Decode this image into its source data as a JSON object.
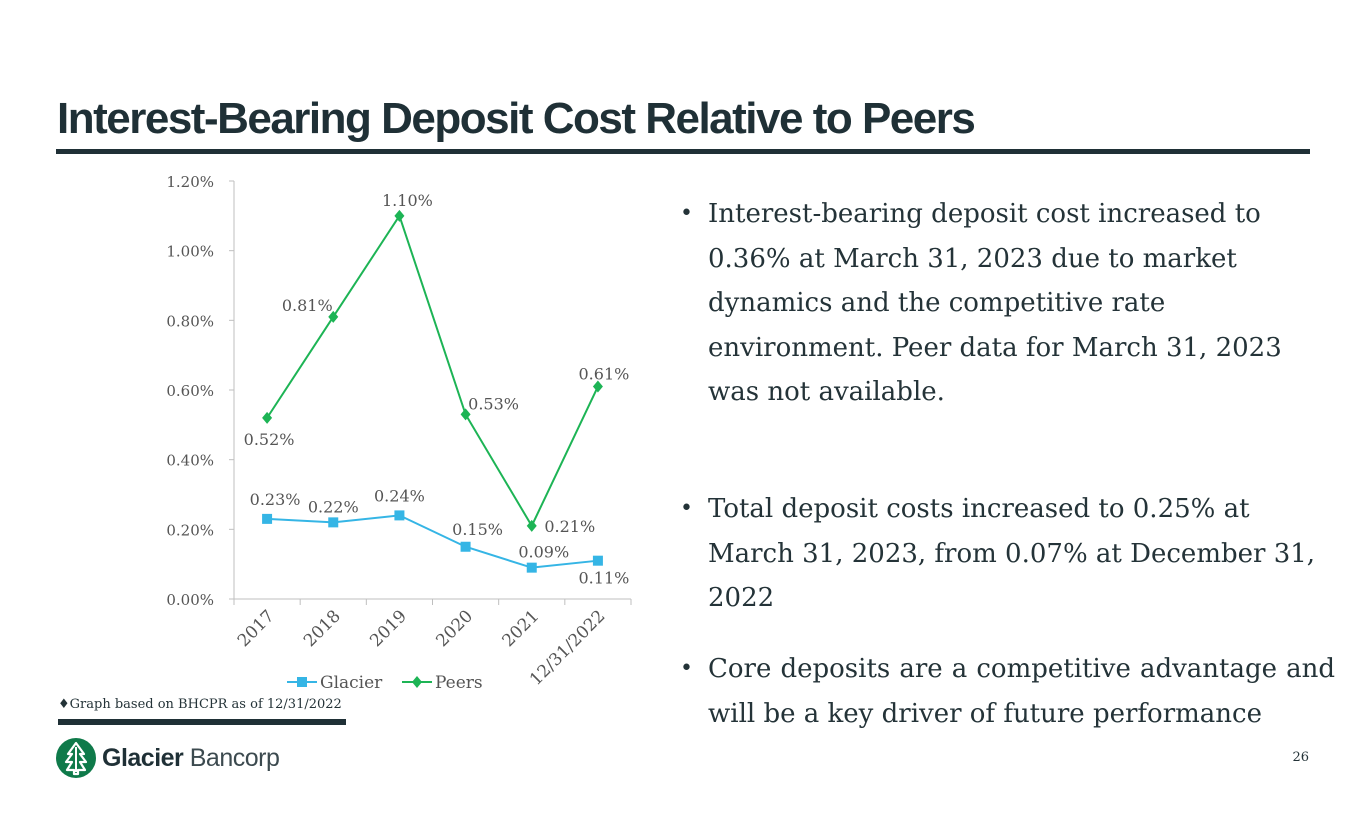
{
  "slide": {
    "title": "Interest-Bearing Deposit Cost Relative to Peers",
    "page_number": "26",
    "footnote": "♦Graph based on BHCPR as of 12/31/2022",
    "bullets": [
      "Interest-bearing deposit cost increased to 0.36% at March 31, 2023 due to market dynamics and the competitive rate environment.  Peer data for March 31, 2023 was not available.",
      "Total deposit costs increased to 0.25% at March 31, 2023, from 0.07% at December 31, 2022",
      "Core deposits are a competitive advantage and will be a key driver of future performance"
    ],
    "logo": {
      "brand": "Glacier",
      "suffix": "Bancorp"
    }
  },
  "colors": {
    "title": "#1f3036",
    "glacier": "#35b5e5",
    "peers": "#1db455",
    "axis": "#bfbfbf",
    "label": "#555555"
  },
  "chart_data": {
    "type": "line",
    "categories": [
      "2017",
      "2018",
      "2019",
      "2020",
      "2021",
      "12/31/2022"
    ],
    "series": [
      {
        "name": "Glacier",
        "values": [
          0.23,
          0.22,
          0.24,
          0.15,
          0.09,
          0.11
        ],
        "labels": [
          "0.23%",
          "0.22%",
          "0.24%",
          "0.15%",
          "0.09%",
          "0.11%"
        ],
        "marker": "square"
      },
      {
        "name": "Peers",
        "values": [
          0.52,
          0.81,
          1.1,
          0.53,
          0.21,
          0.61
        ],
        "labels": [
          "0.52%",
          "0.81%",
          "1.10%",
          "0.53%",
          "0.21%",
          "0.61%"
        ],
        "marker": "diamond"
      }
    ],
    "ylim": [
      0,
      1.2
    ],
    "yticks": [
      "0.00%",
      "0.20%",
      "0.40%",
      "0.60%",
      "0.80%",
      "1.00%",
      "1.20%"
    ],
    "ytick_values": [
      0,
      0.2,
      0.4,
      0.6,
      0.8,
      1.0,
      1.2
    ],
    "legend": "bottom",
    "grid": false
  }
}
